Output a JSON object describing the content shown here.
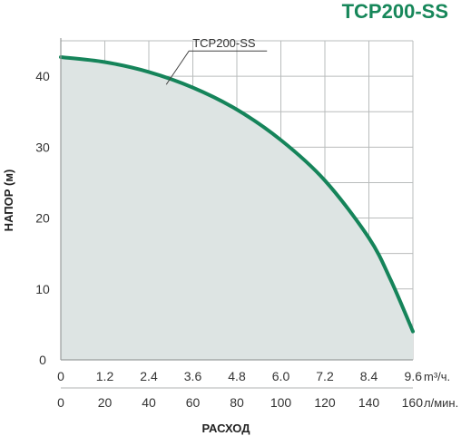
{
  "chart_data": {
    "type": "area",
    "title": "TCP200-SS",
    "ylabel": "НАПОР (м)",
    "xlabel": "РАСХОД",
    "x_primary": {
      "unit": "m³/ч.",
      "ticks": [
        "0",
        "1.2",
        "2.4",
        "3.6",
        "4.8",
        "6.0",
        "7.2",
        "8.4",
        "9.6"
      ],
      "range": [
        0,
        9.6
      ]
    },
    "x_secondary": {
      "unit": "л/мин.",
      "ticks": [
        "0",
        "20",
        "40",
        "60",
        "80",
        "100",
        "120",
        "140",
        "160"
      ],
      "range": [
        0,
        160
      ]
    },
    "y_ticks": [
      "0",
      "10",
      "20",
      "30",
      "40"
    ],
    "ylim": [
      0,
      45
    ],
    "grid": true,
    "series": [
      {
        "name": "TCP200-SS",
        "x_unit": "m³/ч.",
        "x": [
          0,
          1.2,
          2.4,
          3.6,
          4.8,
          6.0,
          7.2,
          8.4,
          9.0,
          9.6
        ],
        "y": [
          42.7,
          42.0,
          40.6,
          38.4,
          35.3,
          31.0,
          25.3,
          17.2,
          11.2,
          4.0
        ]
      }
    ],
    "colors": {
      "curve": "#15845a",
      "fill": "#dde4e3",
      "grid": "#b9bcbc",
      "title": "#17875a"
    }
  }
}
